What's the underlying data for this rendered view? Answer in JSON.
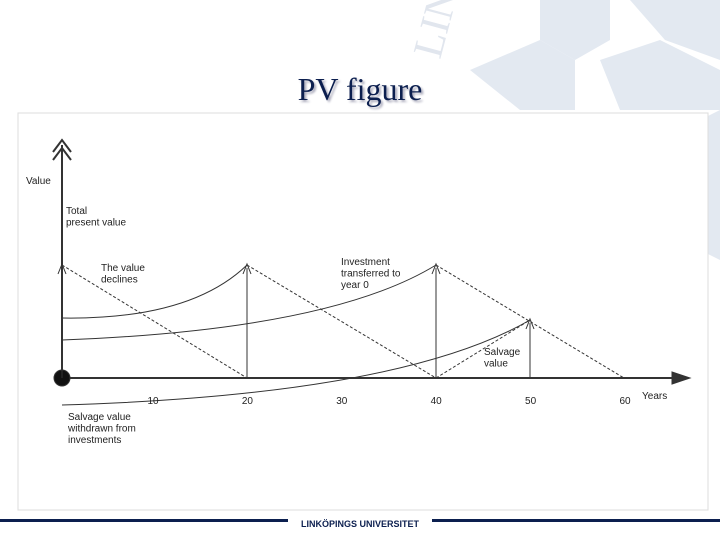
{
  "title": "PV figure",
  "diagram": {
    "y_label": "Value",
    "x_label": "Years",
    "x_ticks": [
      "10",
      "20",
      "30",
      "40",
      "50",
      "60"
    ],
    "annotations": [
      [
        "Total",
        "present value"
      ],
      [
        "The value",
        "declines"
      ],
      [
        "Investment",
        "transferred to",
        "year 0"
      ],
      [
        "Salvage",
        "value"
      ],
      [
        "Salvage value",
        "withdrawn from",
        "investments"
      ]
    ]
  },
  "footer": "LINKÖPINGS UNIVERSITET"
}
